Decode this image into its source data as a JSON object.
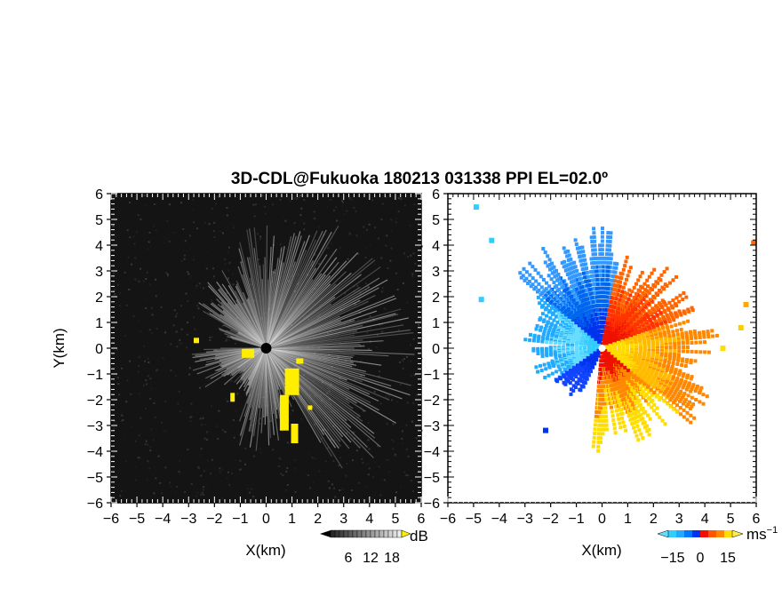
{
  "chart_data": {
    "title": "3D-CDL@Fukuoka 180213 031338 PPI EL=02.0º",
    "panels": [
      {
        "type": "heatmap",
        "variable": "reflectivity-like signal (dB)",
        "xlabel": "X(km)",
        "ylabel": "Y(km)",
        "xlim": [
          -6,
          6
        ],
        "ylim": [
          -6,
          6
        ],
        "xticks": [
          "−6",
          "−5",
          "−4",
          "−3",
          "−2",
          "−1",
          "0",
          "1",
          "2",
          "3",
          "4",
          "5",
          "6"
        ],
        "yticks": [
          "6",
          "5",
          "4",
          "3",
          "2",
          "1",
          "0",
          "−1",
          "−2",
          "−3",
          "−4",
          "−5",
          "−6"
        ],
        "colormap": "grayscale with yellow highlight",
        "colors": {
          "background": "#141414",
          "low": "#3a3a3a",
          "high": "#f0f0f0",
          "highlight": "#ffee00"
        },
        "colorbar": {
          "ticks": [
            "6",
            "12",
            "18"
          ],
          "unit": "dB"
        }
      },
      {
        "type": "heatmap",
        "variable": "Doppler velocity (m/s)",
        "xlabel": "X(km)",
        "ylabel": "",
        "xlim": [
          -6,
          6
        ],
        "ylim": [
          -6,
          6
        ],
        "xticks": [
          "−6",
          "−5",
          "−4",
          "−3",
          "−2",
          "−1",
          "0",
          "1",
          "2",
          "3",
          "4",
          "5",
          "6"
        ],
        "yticks": [
          "6",
          "5",
          "4",
          "3",
          "2",
          "1",
          "0",
          "−1",
          "−2",
          "−3",
          "−4",
          "−5",
          "−6"
        ],
        "colormap": "diverging cyan-blue / red-orange-yellow",
        "colors": {
          "neg_far": "#33ccff",
          "neg_near": "#0033ee",
          "pos_near": "#ee1100",
          "pos_mid": "#ff8800",
          "pos_far": "#ffdd00"
        },
        "colorbar": {
          "ticks": [
            "−15",
            "0",
            "15"
          ],
          "unit": "ms",
          "unit_sup": "−1"
        }
      }
    ]
  }
}
